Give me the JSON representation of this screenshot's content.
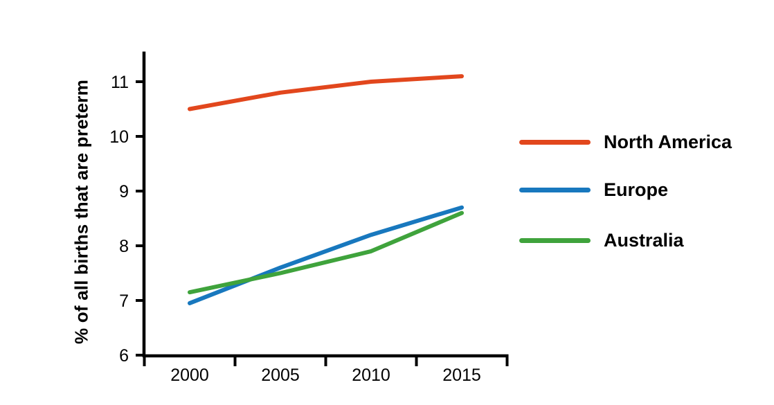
{
  "chart_data": {
    "type": "line",
    "title": "",
    "xlabel": "",
    "ylabel": "% of all births that are preterm",
    "x": [
      2000,
      2005,
      2010,
      2015
    ],
    "xtick_labels": [
      "2000",
      "2005",
      "2010",
      "2015"
    ],
    "x_boundary_ticks": [
      1997.5,
      2002.5,
      2007.5,
      2012.5,
      2017.5
    ],
    "yticks": [
      6,
      7,
      8,
      9,
      10,
      11
    ],
    "ytick_labels": [
      "6",
      "7",
      "8",
      "9",
      "10",
      "11"
    ],
    "ylim": [
      6,
      11.55
    ],
    "grid": false,
    "legend_position": "right",
    "axis_color": "#000000",
    "background_color": "#ffffff",
    "series": [
      {
        "name": "North America",
        "color": "#E2471D",
        "values": [
          10.5,
          10.8,
          11.0,
          11.1
        ]
      },
      {
        "name": "Europe",
        "color": "#1878BE",
        "values": [
          6.95,
          7.6,
          8.2,
          8.7
        ]
      },
      {
        "name": "Australia",
        "color": "#3FA33C",
        "values": [
          7.15,
          7.5,
          7.9,
          8.6
        ]
      }
    ]
  }
}
